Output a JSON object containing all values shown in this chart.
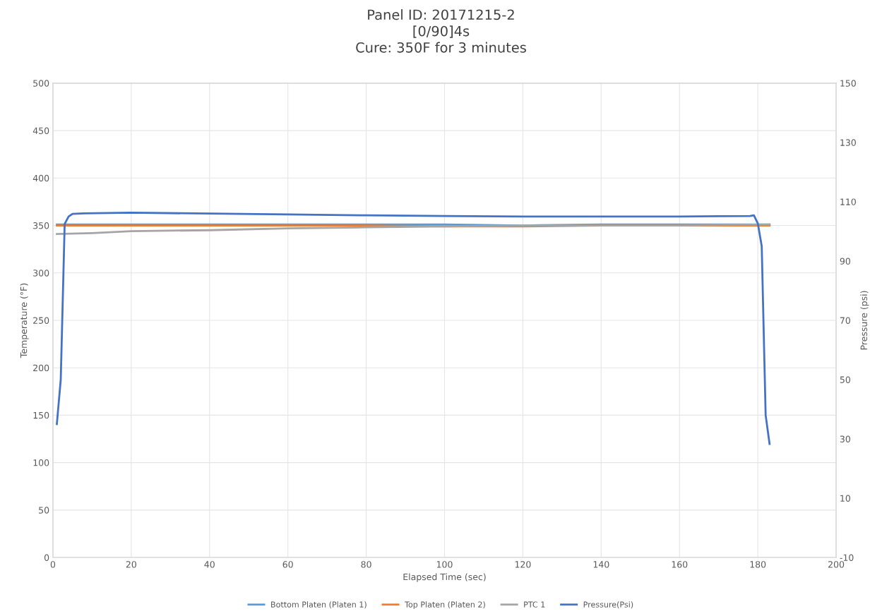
{
  "chart_data": {
    "type": "line",
    "title": "Panel ID: 20171215-2\n[0/90]4s\nCure: 350F for 3 minutes",
    "xlabel": "Elapsed Time (sec)",
    "ylabel": "Temperature (°F)",
    "y2label": "Pressure (psi)",
    "xlim": [
      0,
      200
    ],
    "xticks": [
      0,
      20,
      40,
      60,
      80,
      100,
      120,
      140,
      160,
      180,
      200
    ],
    "ylim": [
      0,
      500
    ],
    "yticks": [
      0,
      50,
      100,
      150,
      200,
      250,
      300,
      350,
      400,
      450,
      500
    ],
    "y2lim": [
      -10,
      150
    ],
    "y2ticks": [
      -10,
      10,
      30,
      50,
      70,
      90,
      110,
      130,
      150
    ],
    "grid": true,
    "legend": "bottom",
    "marker": "none",
    "line_style": "solid",
    "series": [
      {
        "name": "Bottom Platen (Platen 1)",
        "color": "#5b9bd5",
        "x": [
          1,
          20,
          40,
          60,
          80,
          100,
          120,
          140,
          160,
          183
        ],
        "values": [
          351,
          351,
          351,
          351,
          351,
          351,
          350,
          351,
          351,
          351
        ]
      },
      {
        "name": "Top Platen (Platen 2)",
        "color": "#ed7d31",
        "x": [
          1,
          20,
          40,
          60,
          80,
          100,
          120,
          140,
          160,
          183
        ],
        "values": [
          350,
          350,
          350,
          350,
          350,
          349,
          349,
          350,
          350,
          350
        ]
      },
      {
        "name": "PTC 1",
        "color": "#a5a5a5",
        "x": [
          1,
          10,
          20,
          40,
          60,
          80,
          100,
          120,
          140,
          160,
          183
        ],
        "values": [
          341,
          342,
          344,
          345,
          347,
          348,
          349,
          350,
          350,
          350,
          351
        ]
      },
      {
        "name": "Pressure(Psi)",
        "color": "#4472c4",
        "axis": "y2",
        "x": [
          1,
          2,
          3,
          4,
          5,
          8,
          20,
          40,
          60,
          80,
          100,
          120,
          140,
          160,
          178,
          179,
          180,
          181,
          182,
          183
        ],
        "values": [
          35,
          50,
          102.5,
          105,
          105.9,
          106.1,
          106.3,
          106,
          105.7,
          105.4,
          105.2,
          105,
          105,
          105,
          105.2,
          105.4,
          102.7,
          95,
          38,
          28.3
        ]
      }
    ]
  }
}
